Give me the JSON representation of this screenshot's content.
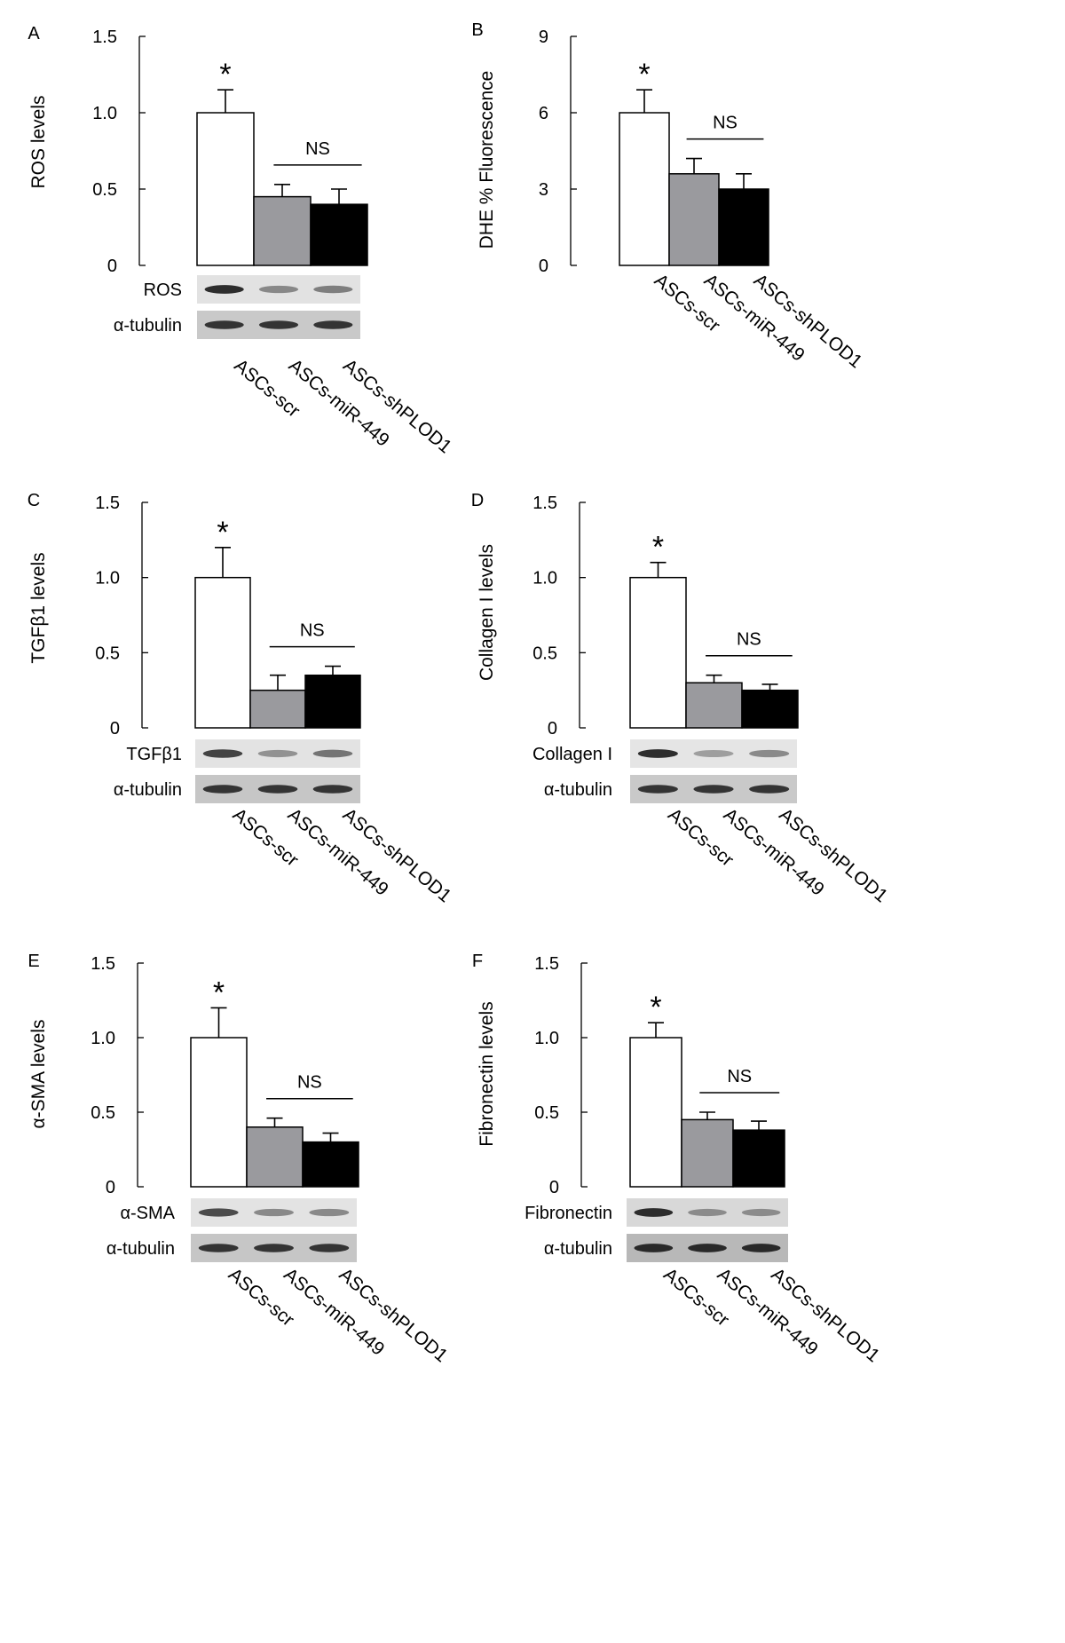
{
  "chart_data": [
    {
      "panel": "A",
      "type": "bar",
      "ylabel": "ROS levels",
      "yticks": [
        "0",
        "0.5",
        "1.0",
        "1.5"
      ],
      "ylim": [
        0,
        1.5
      ],
      "categories": [
        "ASCs-scr",
        "ASCs-miR-449",
        "ASCs-shPLOD1"
      ],
      "values": [
        1.0,
        0.45,
        0.4
      ],
      "errors": [
        0.15,
        0.08,
        0.1
      ],
      "colors": [
        "#ffffff",
        "#9a9a9e",
        "#000000"
      ],
      "significance": "*",
      "ns_label": "NS",
      "blots": [
        "ROS",
        "α-tubulin"
      ]
    },
    {
      "panel": "B",
      "type": "bar",
      "ylabel": "DHE % Fluorescence",
      "yticks": [
        "0",
        "3",
        "6",
        "9"
      ],
      "ylim": [
        0,
        9
      ],
      "categories": [
        "ASCs-scr",
        "ASCs-miR-449",
        "ASCs-shPLOD1"
      ],
      "values": [
        6.0,
        3.6,
        3.0
      ],
      "errors": [
        0.9,
        0.6,
        0.6
      ],
      "colors": [
        "#ffffff",
        "#9a9a9e",
        "#000000"
      ],
      "significance": "*",
      "ns_label": "NS",
      "blots": []
    },
    {
      "panel": "C",
      "type": "bar",
      "ylabel": "TGFβ1 levels",
      "yticks": [
        "0",
        "0.5",
        "1.0",
        "1.5"
      ],
      "ylim": [
        0,
        1.5
      ],
      "categories": [
        "ASCs-scr",
        "ASCs-miR-449",
        "ASCs-shPLOD1"
      ],
      "values": [
        1.0,
        0.25,
        0.35
      ],
      "errors": [
        0.2,
        0.1,
        0.06
      ],
      "colors": [
        "#ffffff",
        "#9a9a9e",
        "#000000"
      ],
      "significance": "*",
      "ns_label": "NS",
      "blots": [
        "TGFβ1",
        "α-tubulin"
      ]
    },
    {
      "panel": "D",
      "type": "bar",
      "ylabel": "Collagen I levels",
      "yticks": [
        "0",
        "0.5",
        "1.0",
        "1.5"
      ],
      "ylim": [
        0,
        1.5
      ],
      "categories": [
        "ASCs-scr",
        "ASCs-miR-449",
        "ASCs-shPLOD1"
      ],
      "values": [
        1.0,
        0.3,
        0.25
      ],
      "errors": [
        0.1,
        0.05,
        0.04
      ],
      "colors": [
        "#ffffff",
        "#9a9a9e",
        "#000000"
      ],
      "significance": "*",
      "ns_label": "NS",
      "blots": [
        "Collagen I",
        "α-tubulin"
      ]
    },
    {
      "panel": "E",
      "type": "bar",
      "ylabel": "α-SMA levels",
      "yticks": [
        "0",
        "0.5",
        "1.0",
        "1.5"
      ],
      "ylim": [
        0,
        1.5
      ],
      "categories": [
        "ASCs-scr",
        "ASCs-miR-449",
        "ASCs-shPLOD1"
      ],
      "values": [
        1.0,
        0.4,
        0.3
      ],
      "errors": [
        0.2,
        0.06,
        0.06
      ],
      "colors": [
        "#ffffff",
        "#9a9a9e",
        "#000000"
      ],
      "significance": "*",
      "ns_label": "NS",
      "blots": [
        "α-SMA",
        "α-tubulin"
      ]
    },
    {
      "panel": "F",
      "type": "bar",
      "ylabel": "Fibronectin levels",
      "yticks": [
        "0",
        "0.5",
        "1.0",
        "1.5"
      ],
      "ylim": [
        0,
        1.5
      ],
      "categories": [
        "ASCs-scr",
        "ASCs-miR-449",
        "ASCs-shPLOD1"
      ],
      "values": [
        1.0,
        0.45,
        0.38
      ],
      "errors": [
        0.1,
        0.05,
        0.06
      ],
      "colors": [
        "#ffffff",
        "#9a9a9e",
        "#000000"
      ],
      "significance": "*",
      "ns_label": "NS",
      "blots": [
        "Fibronectin",
        "α-tubulin"
      ]
    }
  ]
}
